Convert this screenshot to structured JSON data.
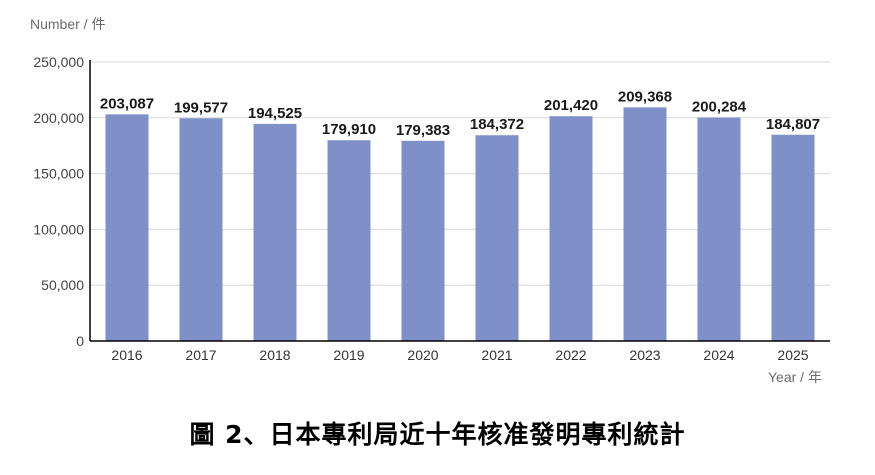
{
  "chart_data": {
    "type": "bar",
    "ylabel": "Number / 件",
    "xlabel": "Year / 年",
    "categories": [
      "2016",
      "2017",
      "2018",
      "2019",
      "2020",
      "2021",
      "2022",
      "2023",
      "2024",
      "2025"
    ],
    "values": [
      203087,
      199577,
      194525,
      179910,
      179383,
      184372,
      201420,
      209368,
      200284,
      184807
    ],
    "value_labels": [
      "203,087",
      "199,577",
      "194,525",
      "179,910",
      "179,383",
      "184,372",
      "201,420",
      "209,368",
      "200,284",
      "184,807"
    ],
    "ylim": [
      0,
      250000
    ],
    "yticks": [
      0,
      50000,
      100000,
      150000,
      200000,
      250000
    ],
    "ytick_labels": [
      "0",
      "50,000",
      "100,000",
      "150,000",
      "200,000",
      "250,000"
    ],
    "grid": true,
    "bar_color": "#7f8fc8",
    "grid_color": "#d9d9d9",
    "axis_color": "#000000"
  },
  "caption": "圖 2、日本專利局近十年核准發明專利統計"
}
